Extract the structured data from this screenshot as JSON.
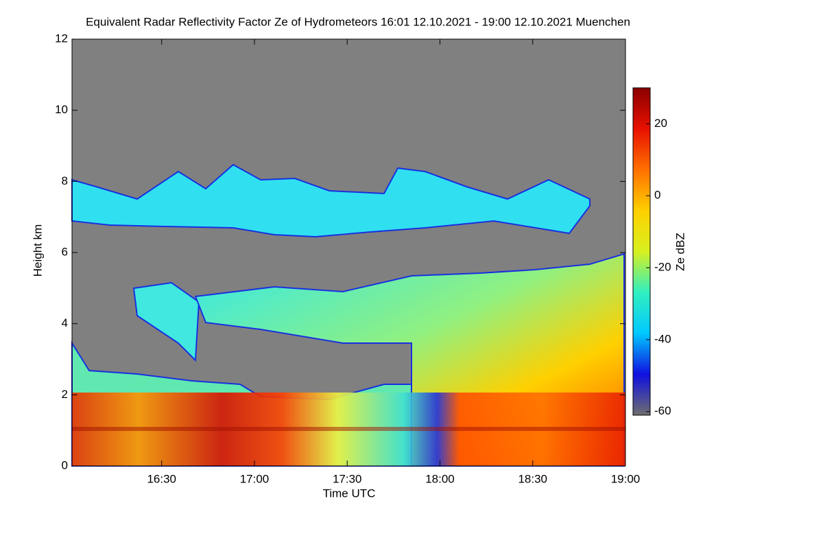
{
  "chart_data": {
    "type": "heatmap",
    "title": "Equivalent Radar Reflectivity Factor Ze of Hydrometeors   16:01 12.10.2021 - 19:00 12.10.2021 Muenchen",
    "x_label": "Time UTC",
    "y_label": "Height km",
    "xlim": [
      961,
      1140
    ],
    "xticks": [
      {
        "value": 990,
        "label": "16:30"
      },
      {
        "value": 1020,
        "label": "17:00"
      },
      {
        "value": 1050,
        "label": "17:30"
      },
      {
        "value": 1080,
        "label": "18:00"
      },
      {
        "value": 1110,
        "label": "18:30"
      },
      {
        "value": 1140,
        "label": "19:00"
      }
    ],
    "ylim": [
      0,
      12
    ],
    "yticks": [
      0,
      2,
      4,
      6,
      8,
      10,
      12
    ],
    "background_color": "#808080",
    "colorbar": {
      "label": "Ze dBZ",
      "lim": [
        -61,
        30
      ],
      "ticks": [
        -60,
        -40,
        -20,
        0,
        20
      ],
      "colormap": [
        "#6e6e6e",
        "#1010e0",
        "#00c8ff",
        "#30f0c0",
        "#d8f020",
        "#ffd000",
        "#ff7000",
        "#e81000",
        "#8a0000"
      ]
    }
  }
}
